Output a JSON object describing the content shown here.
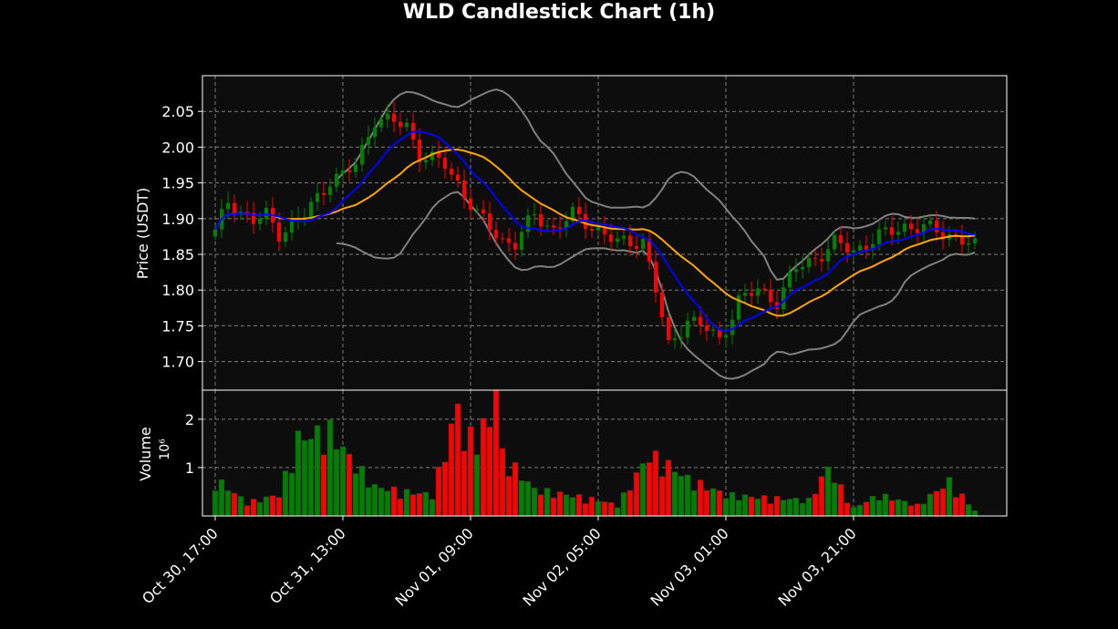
{
  "colors": {
    "background": "#000000",
    "panel": "#0d0d0d",
    "grid": "#9a9a9a",
    "up": "#008000",
    "down": "#ff0000",
    "ma_fast": "#0000ff",
    "ma_slow": "#ffa500",
    "bands": "#808080",
    "text": "#ffffff"
  },
  "chart_data": {
    "type": "candlestick",
    "title": "WLD Candlestick Chart (1h)",
    "ylabel": "Price (USDT)",
    "volume_label": "Volume",
    "volume_exponent_label": "10⁶",
    "ylim": [
      1.66,
      2.1
    ],
    "volume_ylim": [
      0,
      2.6
    ],
    "xlim_hours": [
      -2,
      124
    ],
    "y_ticks": [
      1.7,
      1.75,
      1.8,
      1.85,
      1.9,
      1.95,
      2.0,
      2.05
    ],
    "y_tick_labels": [
      "1.70",
      "1.75",
      "1.80",
      "1.85",
      "1.90",
      "1.95",
      "2.00",
      "2.05"
    ],
    "volume_ticks": [
      1,
      2
    ],
    "volume_tick_labels": [
      "1",
      "2"
    ],
    "x_ticks": [
      {
        "hour": 0,
        "label": "Oct 30, 17:00"
      },
      {
        "hour": 20,
        "label": "Oct 31, 13:00"
      },
      {
        "hour": 40,
        "label": "Nov 01, 09:00"
      },
      {
        "hour": 60,
        "label": "Nov 02, 05:00"
      },
      {
        "hour": 80,
        "label": "Nov 03, 01:00"
      },
      {
        "hour": 100,
        "label": "Nov 03, 21:00"
      }
    ],
    "grid": true,
    "overlays": [
      "moving-average-fast",
      "moving-average-slow",
      "bollinger-bands"
    ],
    "price_anchors": [
      {
        "hour": 0,
        "price": 1.88
      },
      {
        "hour": 2,
        "price": 1.925
      },
      {
        "hour": 6,
        "price": 1.895
      },
      {
        "hour": 8,
        "price": 1.905
      },
      {
        "hour": 10,
        "price": 1.88
      },
      {
        "hour": 14,
        "price": 1.905
      },
      {
        "hour": 18,
        "price": 1.955
      },
      {
        "hour": 20,
        "price": 1.96
      },
      {
        "hour": 22,
        "price": 1.975
      },
      {
        "hour": 25,
        "price": 2.04
      },
      {
        "hour": 30,
        "price": 2.03
      },
      {
        "hour": 32,
        "price": 1.99
      },
      {
        "hour": 36,
        "price": 1.975
      },
      {
        "hour": 38,
        "price": 1.95
      },
      {
        "hour": 41,
        "price": 1.905
      },
      {
        "hour": 45,
        "price": 1.87
      },
      {
        "hour": 47,
        "price": 1.865
      },
      {
        "hour": 50,
        "price": 1.905
      },
      {
        "hour": 53,
        "price": 1.885
      },
      {
        "hour": 56,
        "price": 1.905
      },
      {
        "hour": 60,
        "price": 1.885
      },
      {
        "hour": 63,
        "price": 1.865
      },
      {
        "hour": 67,
        "price": 1.87
      },
      {
        "hour": 69,
        "price": 1.8
      },
      {
        "hour": 71,
        "price": 1.72
      },
      {
        "hour": 74,
        "price": 1.76
      },
      {
        "hour": 77,
        "price": 1.745
      },
      {
        "hour": 79,
        "price": 1.73
      },
      {
        "hour": 82,
        "price": 1.785
      },
      {
        "hour": 85,
        "price": 1.8
      },
      {
        "hour": 88,
        "price": 1.785
      },
      {
        "hour": 91,
        "price": 1.83
      },
      {
        "hour": 94,
        "price": 1.845
      },
      {
        "hour": 97,
        "price": 1.865
      },
      {
        "hour": 100,
        "price": 1.855
      },
      {
        "hour": 104,
        "price": 1.875
      },
      {
        "hour": 108,
        "price": 1.89
      },
      {
        "hour": 112,
        "price": 1.885
      },
      {
        "hour": 116,
        "price": 1.875
      },
      {
        "hour": 119,
        "price": 1.86
      }
    ],
    "volume_anchors": [
      {
        "hour": 0,
        "volume": 0.7
      },
      {
        "hour": 5,
        "volume": 0.25
      },
      {
        "hour": 10,
        "volume": 0.4
      },
      {
        "hour": 13,
        "volume": 1.45
      },
      {
        "hour": 18,
        "volume": 1.6
      },
      {
        "hour": 21,
        "volume": 1.1
      },
      {
        "hour": 25,
        "volume": 0.55
      },
      {
        "hour": 30,
        "volume": 0.45
      },
      {
        "hour": 34,
        "volume": 0.4
      },
      {
        "hour": 38,
        "volume": 2.05
      },
      {
        "hour": 39,
        "volume": 1.4
      },
      {
        "hour": 43,
        "volume": 1.75
      },
      {
        "hour": 44,
        "volume": 2.65
      },
      {
        "hour": 45,
        "volume": 1.15
      },
      {
        "hour": 50,
        "volume": 0.5
      },
      {
        "hour": 55,
        "volume": 0.4
      },
      {
        "hour": 60,
        "volume": 0.3
      },
      {
        "hour": 63,
        "volume": 0.2
      },
      {
        "hour": 68,
        "volume": 1.15
      },
      {
        "hour": 71,
        "volume": 0.95
      },
      {
        "hour": 74,
        "volume": 0.7
      },
      {
        "hour": 80,
        "volume": 0.4
      },
      {
        "hour": 85,
        "volume": 0.35
      },
      {
        "hour": 93,
        "volume": 0.3
      },
      {
        "hour": 96,
        "volume": 0.9
      },
      {
        "hour": 100,
        "volume": 0.15
      },
      {
        "hour": 104,
        "volume": 0.4
      },
      {
        "hour": 110,
        "volume": 0.2
      },
      {
        "hour": 115,
        "volume": 0.65
      },
      {
        "hour": 119,
        "volume": 0.1
      }
    ]
  }
}
